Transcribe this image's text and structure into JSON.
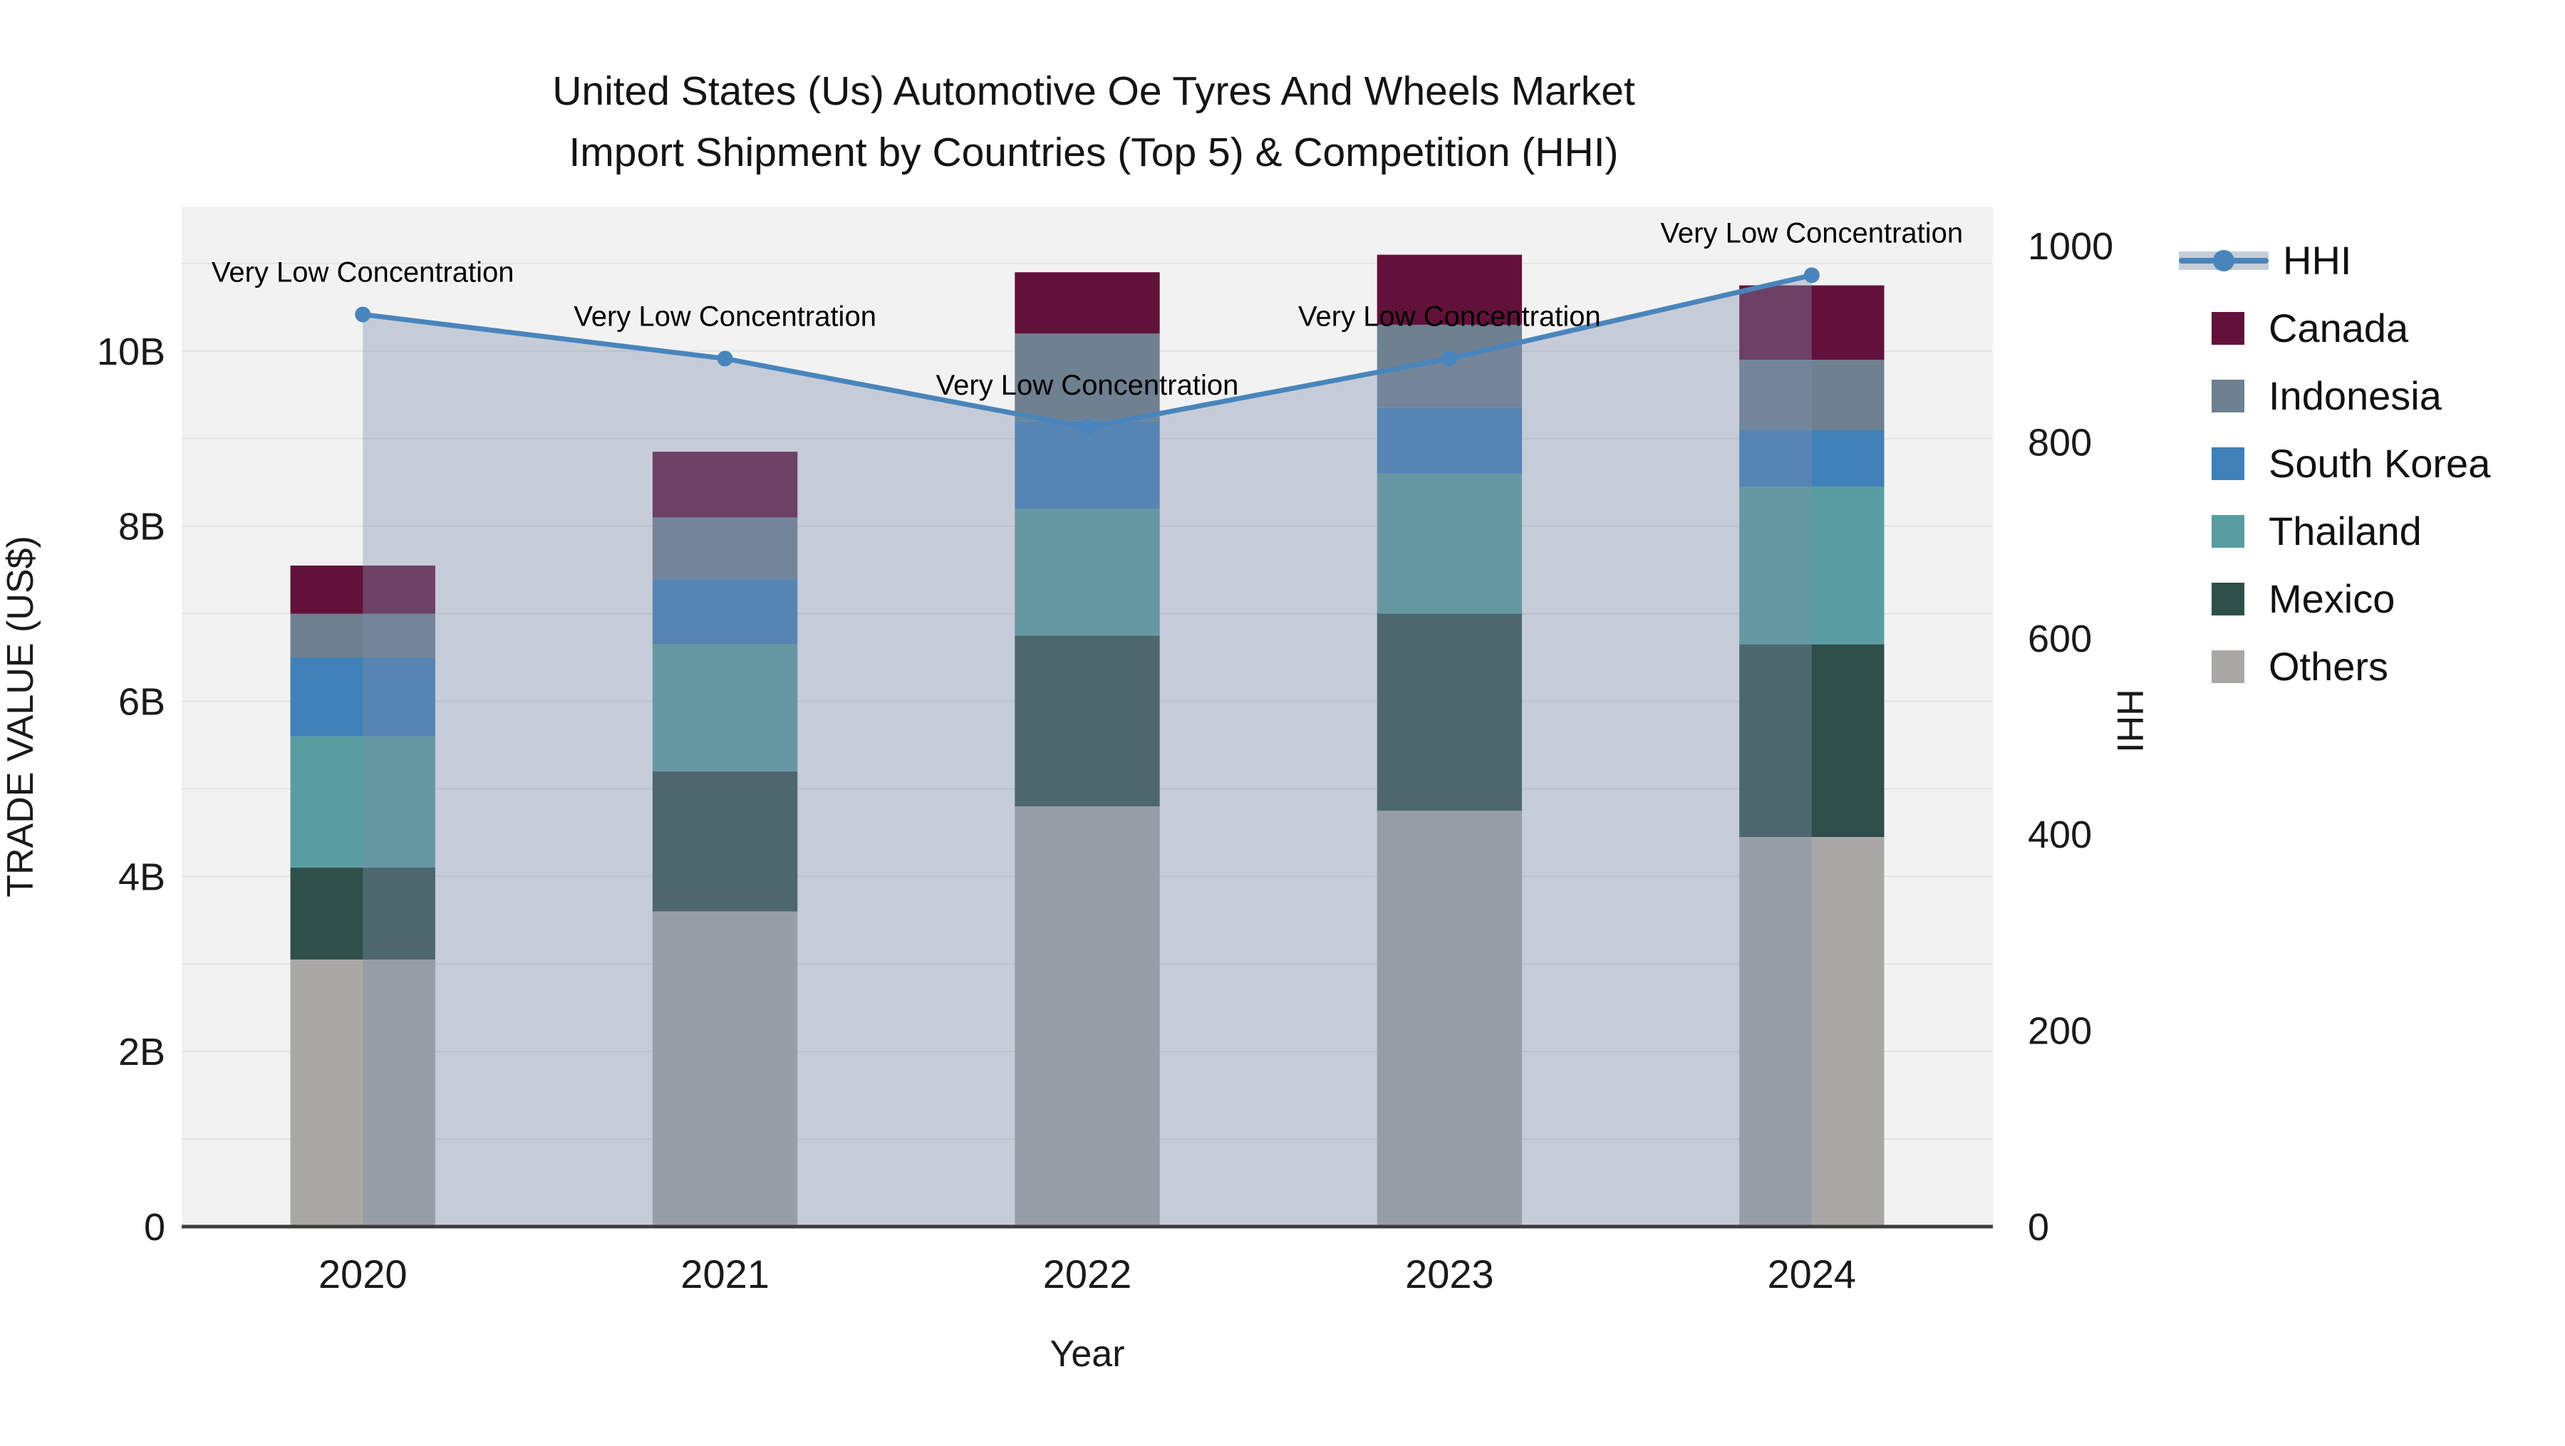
{
  "title": {
    "line1": "United States (Us) Automotive Oe Tyres And Wheels Market",
    "line2": "Import Shipment by Countries (Top 5) & Competition (HHI)"
  },
  "chart_data": {
    "type": "bar",
    "subtype": "stacked-bars-with-line-overlay",
    "title": "United States (Us) Automotive Oe Tyres And Wheels Market Import Shipment by Countries (Top 5) & Competition (HHI)",
    "categories": [
      "2020",
      "2021",
      "2022",
      "2023",
      "2024"
    ],
    "value_unit": "billion US$",
    "series": [
      {
        "name": "Others",
        "color": "#A9A8A6",
        "values": [
          3.05,
          3.6,
          4.8,
          4.75,
          4.45
        ]
      },
      {
        "name": "Mexico",
        "color": "#2F4F4A",
        "values": [
          1.05,
          1.6,
          1.95,
          2.25,
          2.2
        ]
      },
      {
        "name": "Thailand",
        "color": "#589EA1",
        "values": [
          1.5,
          1.45,
          1.45,
          1.6,
          1.8
        ]
      },
      {
        "name": "South Korea",
        "color": "#4080B8",
        "values": [
          0.9,
          0.75,
          1.0,
          0.75,
          0.65
        ]
      },
      {
        "name": "Indonesia",
        "color": "#6F8090",
        "values": [
          0.5,
          0.7,
          1.0,
          0.95,
          0.8
        ]
      },
      {
        "name": "Canada",
        "color": "#62123A",
        "values": [
          0.55,
          0.75,
          0.7,
          0.8,
          0.85
        ]
      }
    ],
    "line_series": {
      "name": "HHI",
      "values": [
        930,
        885,
        815,
        885,
        970
      ],
      "color": "#4985BC",
      "area_fill": "rgba(125,142,170,0.38)",
      "marker": "circle"
    },
    "annotations": [
      {
        "category": "2020",
        "text": "Very Low Concentration"
      },
      {
        "category": "2021",
        "text": "Very Low Concentration"
      },
      {
        "category": "2022",
        "text": "Very Low Concentration"
      },
      {
        "category": "2023",
        "text": "Very Low Concentration"
      },
      {
        "category": "2024",
        "text": "Very Low Concentration"
      }
    ],
    "xlabel": "Year",
    "ylabel": "TRADE VALUE (US$)",
    "y2label": "HHI",
    "ylim": [
      0,
      11.65
    ],
    "y2lim": [
      0,
      1040
    ],
    "yticks": [
      {
        "v": 0,
        "label": "0"
      },
      {
        "v": 2,
        "label": "2B"
      },
      {
        "v": 4,
        "label": "4B"
      },
      {
        "v": 6,
        "label": "6B"
      },
      {
        "v": 8,
        "label": "8B"
      },
      {
        "v": 10,
        "label": "10B"
      }
    ],
    "y2ticks": [
      {
        "v": 0,
        "label": "0"
      },
      {
        "v": 200,
        "label": "200"
      },
      {
        "v": 400,
        "label": "400"
      },
      {
        "v": 600,
        "label": "600"
      },
      {
        "v": 800,
        "label": "800"
      },
      {
        "v": 1000,
        "label": "1000"
      }
    ],
    "grid": {
      "show": true,
      "step": 1
    },
    "colors": {
      "plot_bg": "#F2F2F2",
      "grid": "#E3E3E3",
      "axis_line": "#3C3C3C",
      "text": "#1A1A1A",
      "legend_band": "#C5CDD8"
    },
    "legend": {
      "position": "right",
      "items": [
        {
          "label": "HHI",
          "type": "line",
          "color": "#4985BC"
        },
        {
          "label": "Canada",
          "type": "square",
          "color": "#62123A"
        },
        {
          "label": "Indonesia",
          "type": "square",
          "color": "#6F8090"
        },
        {
          "label": "South Korea",
          "type": "square",
          "color": "#4080B8"
        },
        {
          "label": "Thailand",
          "type": "square",
          "color": "#589EA1"
        },
        {
          "label": "Mexico",
          "type": "square",
          "color": "#2F4F4A"
        },
        {
          "label": "Others",
          "type": "square",
          "color": "#A9A8A6"
        }
      ]
    }
  }
}
